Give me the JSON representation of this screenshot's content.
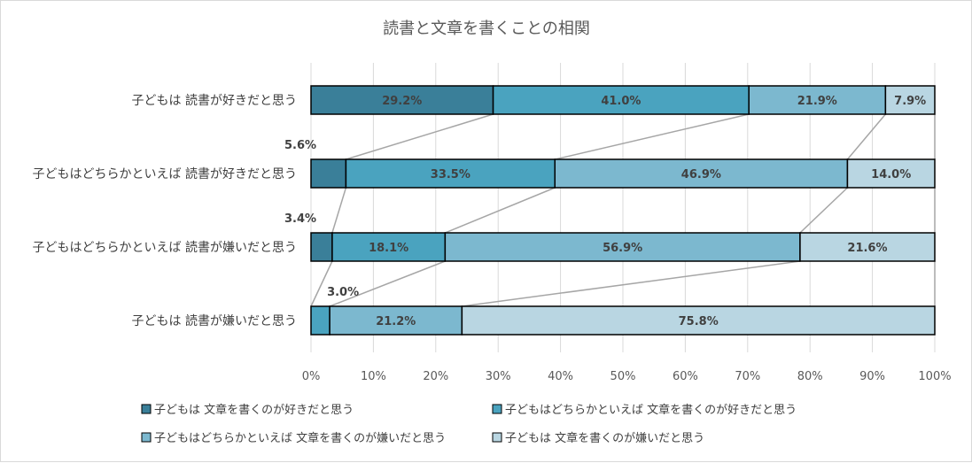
{
  "chart_data": {
    "type": "bar",
    "orientation": "horizontal",
    "stacked": "100%",
    "title": "読書と文章を書くことの相関",
    "categories": [
      "子どもは 読書が好きだと思う",
      "子どもはどちらかといえば 読書が好きだと思う",
      "子どもはどちらかといえば 読書が嫌いだと思う",
      "子どもは 読書が嫌いだと思う"
    ],
    "series": [
      {
        "name": "子どもは 文章を書くのが好きだと思う",
        "color": "#3a7f99",
        "values": [
          29.2,
          5.6,
          3.4,
          0
        ]
      },
      {
        "name": "子どもはどちらかといえば 文章を書くのが好きだと思う",
        "color": "#4aa3bf",
        "values": [
          41.0,
          33.5,
          18.1,
          3.0
        ]
      },
      {
        "name": "子どもはどちらかといえば 文章を書くのが嫌いだと思う",
        "color": "#7cb8cf",
        "values": [
          21.9,
          46.9,
          56.9,
          21.2
        ]
      },
      {
        "name": "子どもは 文章を書くのが嫌いだと思う",
        "color": "#b9d6e2",
        "values": [
          7.9,
          14.0,
          21.6,
          75.8
        ]
      }
    ],
    "data_labels": [
      [
        "29.2%",
        "41.0%",
        "21.9%",
        "7.9%"
      ],
      [
        "5.6%",
        "33.5%",
        "46.9%",
        "14.0%"
      ],
      [
        "3.4%",
        "18.1%",
        "56.9%",
        "21.6%"
      ],
      [
        "",
        "3.0%",
        "21.2%",
        "75.8%"
      ]
    ],
    "xlim": [
      0,
      100
    ],
    "x_ticks": [
      "0%",
      "10%",
      "20%",
      "30%",
      "40%",
      "50%",
      "60%",
      "70%",
      "80%",
      "90%",
      "100%"
    ],
    "grid": true,
    "series_lines": true,
    "legend_position": "bottom"
  }
}
